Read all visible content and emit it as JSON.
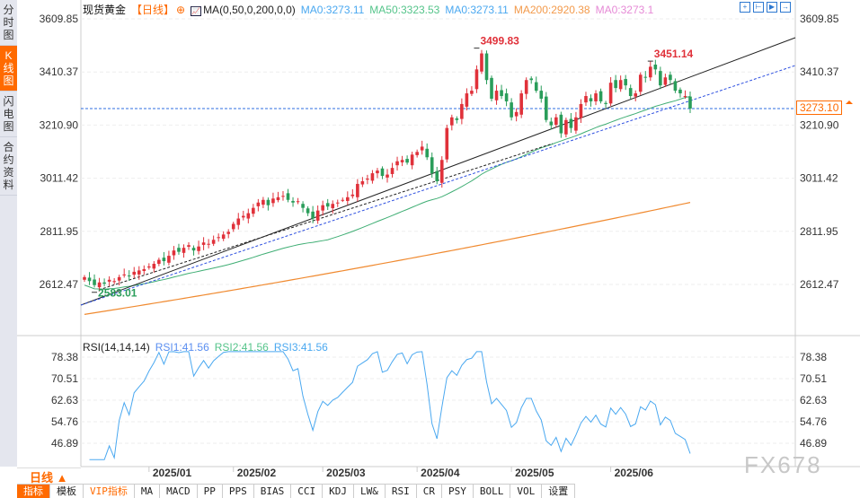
{
  "sidebar": {
    "items": [
      {
        "label": "分时图"
      },
      {
        "label": "K线图",
        "active": true
      },
      {
        "label": "闪电图"
      },
      {
        "label": "合约资料"
      }
    ]
  },
  "header": {
    "instrument": "现货黄金",
    "period": "【日线】",
    "indicator": "MA(0,50,0,200,0,0)",
    "ma_values": [
      {
        "label": "MA0:3273.11",
        "color": "#4aa8f0"
      },
      {
        "label": "MA50:3323.53",
        "color": "#55c48a"
      },
      {
        "label": "MA0:3273.11",
        "color": "#4aa8f0"
      },
      {
        "label": "MA200:2920.38",
        "color": "#f39a4b"
      },
      {
        "label": "MA0:3273.1",
        "color": "#e68ad6"
      }
    ]
  },
  "toolbar": {
    "icons": [
      "crosshair-icon",
      "zoom-fit-icon",
      "play-icon",
      "exit-icon"
    ]
  },
  "current_price_tag": "3273.10",
  "period_selector": "日线 ▲",
  "watermark": "FX678",
  "bottom_tabs": [
    {
      "label": "指标",
      "active": true
    },
    {
      "label": "模板"
    },
    {
      "label": "VIP指标",
      "vip": true
    },
    {
      "label": "MA"
    },
    {
      "label": "MACD"
    },
    {
      "label": "PP"
    },
    {
      "label": "PPS"
    },
    {
      "label": "BIAS"
    },
    {
      "label": "CCI"
    },
    {
      "label": "KDJ"
    },
    {
      "label": "LW&"
    },
    {
      "label": "RSI"
    },
    {
      "label": "CR"
    },
    {
      "label": "PSY"
    },
    {
      "label": "BOLL"
    },
    {
      "label": "VOL"
    },
    {
      "label": "设置"
    }
  ],
  "rsi": {
    "title": "RSI(14,14,14)",
    "values": [
      {
        "label": "RSI1:41.56",
        "color": "#5a8ef0"
      },
      {
        "label": "RSI2:41.56",
        "color": "#55c48a"
      },
      {
        "label": "RSI3:41.56",
        "color": "#4aa8f0"
      }
    ]
  },
  "chart_data": {
    "type": "candlestick",
    "price_ticks": [
      "3609.85",
      "3410.37",
      "3210.90",
      "3011.42",
      "2811.95",
      "2612.47"
    ],
    "price_range": [
      2612.47,
      3609.85
    ],
    "rsi_ticks": [
      "78.38",
      "70.51",
      "62.63",
      "54.76",
      "46.89"
    ],
    "rsi_range": [
      46.89,
      78.38
    ],
    "x_labels": [
      "2025/01",
      "2025/02",
      "2025/03",
      "2025/04",
      "2025/05",
      "2025/06"
    ],
    "x_label_index": [
      13,
      30,
      48,
      67,
      86,
      106
    ],
    "annotations": [
      {
        "text": "3499.83",
        "index": 79,
        "price": 3499.83,
        "color": "#e0313a"
      },
      {
        "text": "3451.14",
        "index": 114,
        "price": 3451.14,
        "color": "#e0313a"
      },
      {
        "text": "2583.01",
        "index": 2,
        "price": 2583.01,
        "color": "#2a9d5a"
      }
    ],
    "closes": [
      2640,
      2625,
      2610,
      2620,
      2615,
      2630,
      2625,
      2640,
      2650,
      2645,
      2660,
      2665,
      2670,
      2680,
      2690,
      2705,
      2700,
      2720,
      2740,
      2735,
      2750,
      2760,
      2740,
      2755,
      2770,
      2765,
      2780,
      2790,
      2800,
      2810,
      2840,
      2860,
      2870,
      2880,
      2900,
      2920,
      2930,
      2910,
      2935,
      2940,
      2945,
      2930,
      2920,
      2925,
      2900,
      2880,
      2860,
      2890,
      2910,
      2905,
      2915,
      2920,
      2930,
      2940,
      2950,
      2990,
      3000,
      3010,
      3030,
      3040,
      3020,
      3025,
      3050,
      3075,
      3080,
      3070,
      3100,
      3110,
      3130,
      3090,
      3030,
      3000,
      3080,
      3200,
      3240,
      3230,
      3290,
      3330,
      3340,
      3420,
      3480,
      3380,
      3310,
      3340,
      3320,
      3300,
      3240,
      3260,
      3330,
      3380,
      3380,
      3340,
      3310,
      3230,
      3210,
      3240,
      3180,
      3230,
      3200,
      3240,
      3290,
      3320,
      3300,
      3330,
      3300,
      3290,
      3370,
      3350,
      3380,
      3360,
      3320,
      3330,
      3400,
      3390,
      3430,
      3420,
      3360,
      3390,
      3380,
      3340,
      3330,
      3320,
      3273
    ],
    "ma200": {
      "start": 2500,
      "end": 2920.38
    },
    "current_price": 3273.1
  }
}
